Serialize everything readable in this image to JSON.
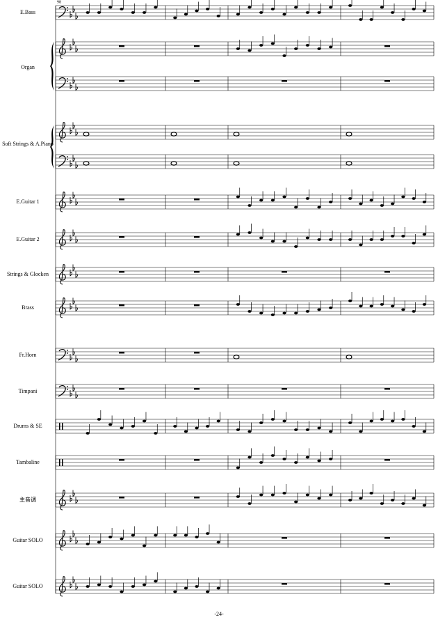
{
  "measure_number": "98",
  "staves": [
    {
      "label": "E.Bass"
    },
    {
      "label": "Organ"
    },
    {
      "label": "Soft Strings & A.Piano"
    },
    {
      "label": "E.Guitar 1"
    },
    {
      "label": "E.Guitar 2"
    },
    {
      "label": "Strings & Glocken"
    },
    {
      "label": "Brass"
    },
    {
      "label": "Fr.Horn"
    },
    {
      "label": "Timpani"
    },
    {
      "label": "Drums & SE"
    },
    {
      "label": "Tambaline"
    },
    {
      "label": "主音调"
    },
    {
      "label": "Guitar SOLO"
    },
    {
      "label": "Guitar SOLO"
    }
  ],
  "page_number": "-24-"
}
